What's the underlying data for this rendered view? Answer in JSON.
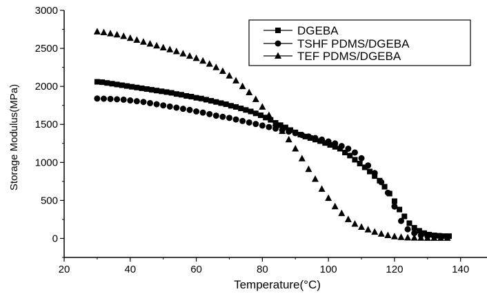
{
  "chart_data": {
    "type": "scatter",
    "xlabel": "Temperature(°C)",
    "ylabel": "Storage Modulus(MPa)",
    "xlim": [
      20,
      148
    ],
    "ylim": [
      -250,
      3000
    ],
    "xticks": [
      20,
      40,
      60,
      80,
      100,
      120,
      140
    ],
    "yticks": [
      0,
      500,
      1000,
      1500,
      2000,
      2500,
      3000
    ],
    "grid": false,
    "legend_position": "top-right",
    "series": [
      {
        "name": "DGEBA",
        "marker": "square",
        "x": [
          30,
          31.5,
          33,
          34.5,
          36,
          37.5,
          39,
          40.5,
          42,
          43.5,
          45,
          46.5,
          48,
          49.5,
          51,
          52.5,
          54,
          55.5,
          57,
          58.5,
          60,
          61.5,
          63,
          64.5,
          66,
          67.5,
          69,
          70.5,
          72,
          73.5,
          75,
          76.5,
          78,
          79.5,
          81,
          82.5,
          84,
          85.5,
          87,
          88.5,
          90,
          91.5,
          93,
          94.5,
          96,
          97.5,
          99,
          100.5,
          102,
          103.5,
          105,
          106.5,
          108,
          109.5,
          111,
          112.5,
          114,
          115.5,
          117,
          118.5,
          120,
          121.5,
          123,
          124.5,
          126,
          127.5,
          129,
          130.5,
          132,
          133.5,
          135,
          136.5
        ],
        "values": [
          2060,
          2055,
          2045,
          2035,
          2025,
          2015,
          2005,
          1995,
          1985,
          1975,
          1965,
          1955,
          1945,
          1935,
          1925,
          1915,
          1900,
          1890,
          1875,
          1865,
          1850,
          1840,
          1825,
          1810,
          1795,
          1780,
          1765,
          1745,
          1730,
          1710,
          1690,
          1670,
          1645,
          1620,
          1590,
          1560,
          1520,
          1490,
          1460,
          1425,
          1395,
          1365,
          1340,
          1320,
          1300,
          1280,
          1255,
          1230,
          1205,
          1180,
          1130,
          1090,
          1035,
          985,
          935,
          880,
          820,
          760,
          680,
          590,
          490,
          380,
          290,
          200,
          140,
          100,
          70,
          50,
          40,
          35,
          30,
          30
        ]
      },
      {
        "name": "TSHF PDMS/DGEBA",
        "marker": "circle",
        "x": [
          30,
          32,
          34,
          36,
          38,
          40,
          42,
          44,
          46,
          48,
          50,
          52,
          54,
          56,
          58,
          60,
          62,
          64,
          66,
          68,
          70,
          72,
          74,
          76,
          78,
          80,
          82,
          84,
          86,
          88,
          90,
          92,
          94,
          96,
          98,
          100,
          102,
          104,
          106,
          108,
          110,
          112,
          114,
          116,
          118,
          120,
          122,
          124,
          126,
          128,
          130,
          132,
          134,
          136
        ],
        "values": [
          1840,
          1838,
          1835,
          1830,
          1825,
          1815,
          1805,
          1795,
          1780,
          1765,
          1750,
          1735,
          1720,
          1705,
          1690,
          1670,
          1655,
          1635,
          1615,
          1600,
          1585,
          1565,
          1545,
          1525,
          1505,
          1485,
          1465,
          1445,
          1425,
          1405,
          1385,
          1360,
          1340,
          1320,
          1300,
          1275,
          1250,
          1215,
          1180,
          1130,
          1055,
          960,
          860,
          740,
          600,
          420,
          230,
          120,
          70,
          40,
          30,
          28,
          25,
          25
        ]
      },
      {
        "name": "TEF PDMS/DGEBA",
        "marker": "triangle",
        "x": [
          30,
          32,
          34,
          36,
          38,
          40,
          42,
          44,
          46,
          48,
          50,
          52,
          54,
          56,
          58,
          60,
          62,
          64,
          66,
          68,
          70,
          72,
          74,
          76,
          78,
          80,
          82,
          84,
          86,
          88,
          90,
          92,
          94,
          96,
          98,
          100,
          102,
          104,
          106,
          108,
          110,
          112,
          114,
          116,
          118,
          120,
          122,
          124,
          126,
          128,
          130,
          132,
          134,
          136
        ],
        "values": [
          2720,
          2710,
          2695,
          2680,
          2660,
          2635,
          2610,
          2585,
          2560,
          2535,
          2510,
          2485,
          2460,
          2430,
          2400,
          2370,
          2335,
          2295,
          2250,
          2200,
          2140,
          2075,
          2000,
          1920,
          1830,
          1730,
          1620,
          1510,
          1410,
          1300,
          1180,
          1050,
          910,
          780,
          650,
          530,
          420,
          330,
          250,
          190,
          150,
          115,
          85,
          60,
          40,
          25,
          15,
          10,
          8,
          6,
          5,
          5,
          5,
          5
        ]
      }
    ]
  }
}
